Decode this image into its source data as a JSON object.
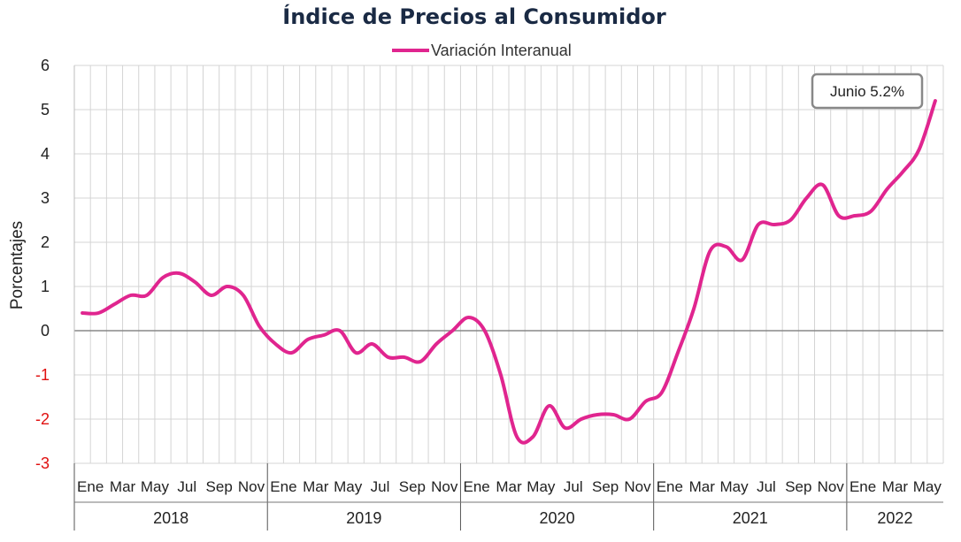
{
  "chart_data": {
    "type": "line",
    "title": "Índice de Precios al Consumidor",
    "ylabel": "Porcentajes",
    "xlabel": "",
    "ylim": [
      -3,
      6
    ],
    "yticks": [
      "6",
      "5",
      "4",
      "3",
      "2",
      "1",
      "0",
      "-1",
      "-2",
      "-3"
    ],
    "grid": true,
    "legend_position": "top-center",
    "years": [
      "2018",
      "2019",
      "2020",
      "2021",
      "2022"
    ],
    "month_labels": {
      "2018": [
        "Ene",
        "Mar",
        "May",
        "Jul",
        "Sep",
        "Nov"
      ],
      "2019": [
        "Ene",
        "Mar",
        "May",
        "Jul",
        "Sep",
        "Nov"
      ],
      "2020": [
        "Ene",
        "Mar",
        "May",
        "Jul",
        "Sep",
        "Nov"
      ],
      "2021": [
        "Ene",
        "Mar",
        "May",
        "Jul",
        "Sep",
        "Nov"
      ],
      "2022": [
        "Ene",
        "Mar",
        "May"
      ]
    },
    "series": [
      {
        "name": "Variación Interanual",
        "color": "#e0258f",
        "values": [
          0.4,
          0.4,
          0.6,
          0.8,
          0.8,
          1.2,
          1.3,
          1.1,
          0.8,
          1.0,
          0.8,
          0.1,
          -0.3,
          -0.5,
          -0.2,
          -0.1,
          0.0,
          -0.5,
          -0.3,
          -0.6,
          -0.6,
          -0.7,
          -0.3,
          0.0,
          0.3,
          0.0,
          -1.0,
          -2.4,
          -2.4,
          -1.7,
          -2.2,
          -2.0,
          -1.9,
          -1.9,
          -2.0,
          -1.6,
          -1.4,
          -0.5,
          0.5,
          1.8,
          1.9,
          1.6,
          2.4,
          2.4,
          2.5,
          3.0,
          3.3,
          2.6,
          2.6,
          2.7,
          3.2,
          3.6,
          4.1,
          5.2
        ]
      }
    ],
    "annotation": "Junio 5.2%",
    "colors": {
      "positive_tick": "#222222",
      "negative_tick": "#e01010",
      "zero_line": "#888888"
    }
  }
}
